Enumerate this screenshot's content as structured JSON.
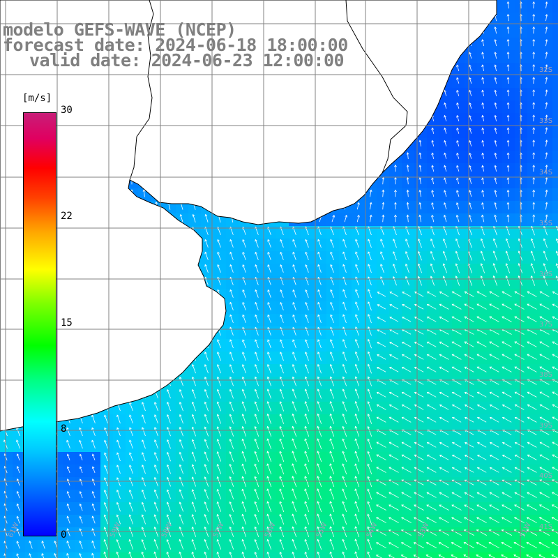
{
  "title": {
    "line1": "modelo GEFS-WAVE (NCEP)",
    "line2": "forecast date: 2024-06-18 18:00:00",
    "line3": "valid date: 2024-06-23 12:00:00"
  },
  "colorbar": {
    "unit": "[m/s]",
    "ticks": [
      "30",
      "22",
      "15",
      "8",
      "0"
    ],
    "tick_values": [
      30,
      22,
      15,
      8,
      0
    ],
    "range": [
      0,
      30
    ],
    "palette": {
      "low": "#0000ff",
      "mid": "#00ffff",
      "green": "#00ff00",
      "yellow": "#ffff00",
      "red": "#ff0000",
      "high": "#c81e78"
    }
  },
  "map": {
    "region": "South America east coast (Uruguay / Argentina)",
    "lat_labels": [
      "32S",
      "33S",
      "34S",
      "35S",
      "36S",
      "37S",
      "38S",
      "39S",
      "40S",
      "41S"
    ],
    "lon_labels": [
      "61W",
      "59W",
      "58W",
      "57W",
      "56W",
      "55W",
      "54W",
      "53W",
      "51W"
    ],
    "colors": {
      "land": "#ffffff",
      "coast": "#000000",
      "grid": "#808080",
      "arrow": "#ffffff",
      "wind_low": "#0033ff",
      "wind_mid": "#00ccff",
      "wind_high": "#00ff40"
    }
  }
}
